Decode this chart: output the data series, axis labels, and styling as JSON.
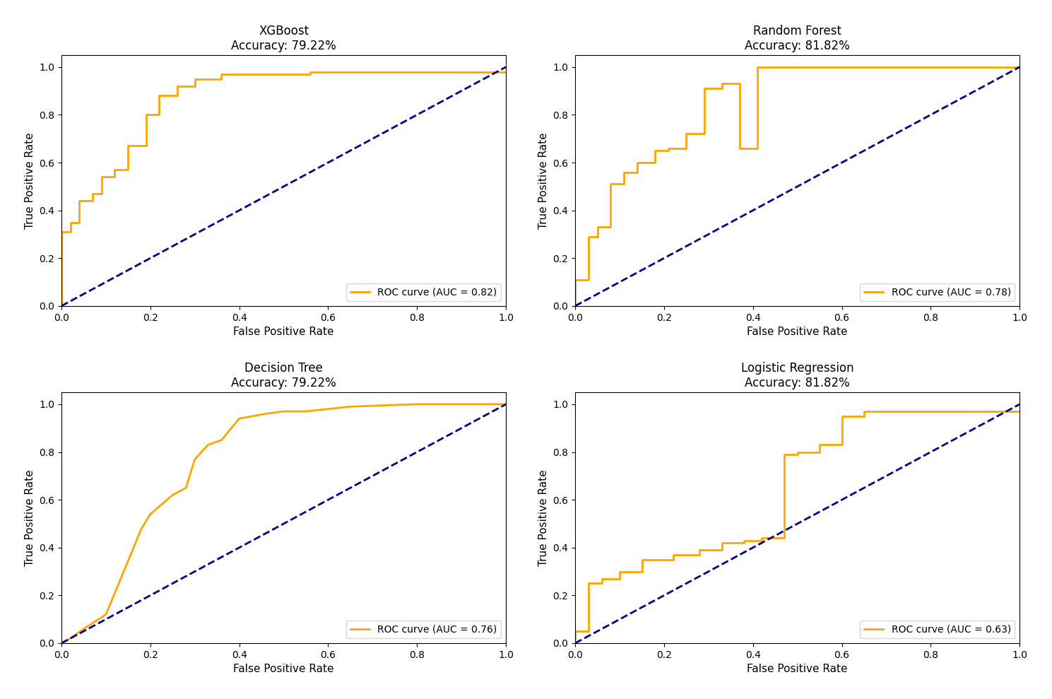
{
  "plots": [
    {
      "title": "XGBoost\nAccuracy: 79.22%",
      "auc": 0.82,
      "legend_label": "ROC curve (AUC = 0.82)",
      "roc_fpr": [
        0.0,
        0.0,
        0.02,
        0.02,
        0.04,
        0.04,
        0.06,
        0.06,
        0.08,
        0.08,
        0.1,
        0.1,
        0.13,
        0.13,
        0.16,
        0.16,
        0.19,
        0.19,
        0.22,
        0.22,
        0.25,
        0.25,
        0.3,
        0.3,
        0.35,
        0.35,
        0.4,
        0.4,
        0.55,
        0.55,
        0.65,
        0.65,
        1.0
      ],
      "roc_tpr": [
        0.0,
        0.31,
        0.31,
        0.35,
        0.35,
        0.44,
        0.44,
        0.47,
        0.47,
        0.54,
        0.54,
        0.57,
        0.57,
        0.67,
        0.67,
        0.8,
        0.8,
        0.88,
        0.88,
        0.92,
        0.92,
        0.95,
        0.95,
        0.97,
        0.97,
        0.98,
        0.98,
        0.97,
        0.97,
        0.98,
        0.98,
        0.98,
        0.98
      ]
    },
    {
      "title": "Random Forest\nAccuracy: 81.82%",
      "auc": 0.78,
      "legend_label": "ROC curve (AUC = 0.78)",
      "roc_fpr": [
        0.0,
        0.0,
        0.03,
        0.03,
        0.06,
        0.06,
        0.09,
        0.09,
        0.12,
        0.12,
        0.15,
        0.15,
        0.18,
        0.18,
        0.21,
        0.21,
        0.24,
        0.24,
        0.27,
        0.27,
        0.3,
        0.3,
        0.33,
        0.33,
        0.36,
        0.36,
        0.4,
        0.4,
        0.43,
        0.43,
        0.6,
        0.6,
        0.63,
        0.63,
        1.0
      ],
      "roc_tpr": [
        0.0,
        0.11,
        0.11,
        0.29,
        0.29,
        0.33,
        0.33,
        0.51,
        0.51,
        0.56,
        0.56,
        0.6,
        0.6,
        0.65,
        0.65,
        0.66,
        0.66,
        0.72,
        0.72,
        0.65,
        0.65,
        0.91,
        0.91,
        0.93,
        0.93,
        0.72,
        0.72,
        0.91,
        0.91,
        1.0,
        1.0,
        1.0,
        1.0,
        1.0,
        1.0
      ]
    },
    {
      "title": "Decision Tree\nAccuracy: 79.22%",
      "auc": 0.76,
      "legend_label": "ROC curve (AUC = 0.76)",
      "roc_fpr": [
        0.0,
        0.02,
        0.04,
        0.06,
        0.08,
        0.1,
        0.13,
        0.15,
        0.18,
        0.2,
        0.22,
        0.25,
        0.28,
        0.3,
        0.32,
        0.35,
        0.38,
        0.4,
        0.43,
        0.45,
        0.48,
        0.5,
        0.55,
        0.6,
        0.65,
        0.7,
        0.8,
        1.0
      ],
      "roc_tpr": [
        0.0,
        0.02,
        0.04,
        0.06,
        0.08,
        0.1,
        0.12,
        0.14,
        0.48,
        0.54,
        0.62,
        0.65,
        0.76,
        0.83,
        0.84,
        0.86,
        0.88,
        0.94,
        0.95,
        0.96,
        0.97,
        0.97,
        0.98,
        0.98,
        0.99,
        0.99,
        1.0,
        1.0
      ]
    },
    {
      "title": "Logistic Regression\nAccuracy: 81.82%",
      "auc": 0.63,
      "legend_label": "ROC curve (AUC = 0.63)",
      "roc_fpr": [
        0.0,
        0.0,
        0.03,
        0.03,
        0.06,
        0.06,
        0.1,
        0.1,
        0.15,
        0.15,
        0.22,
        0.22,
        0.28,
        0.28,
        0.33,
        0.33,
        0.38,
        0.38,
        0.42,
        0.42,
        0.47,
        0.47,
        0.5,
        0.5,
        0.55,
        0.55,
        0.6,
        0.6,
        0.65,
        0.65,
        1.0
      ],
      "roc_tpr": [
        0.0,
        0.05,
        0.05,
        0.25,
        0.25,
        0.27,
        0.27,
        0.3,
        0.3,
        0.35,
        0.35,
        0.37,
        0.37,
        0.39,
        0.39,
        0.42,
        0.42,
        0.43,
        0.43,
        0.44,
        0.44,
        0.79,
        0.79,
        0.8,
        0.8,
        0.83,
        0.83,
        0.95,
        0.95,
        0.97,
        0.97
      ]
    }
  ],
  "roc_color": "#FFA500",
  "diagonal_color": "#00008B",
  "roc_linewidth": 2.0,
  "diagonal_linewidth": 2.0,
  "xlabel": "False Positive Rate",
  "ylabel": "True Positive Rate",
  "background_color": "#ffffff",
  "legend_fontsize": 10,
  "title_fontsize": 12,
  "axis_label_fontsize": 11
}
